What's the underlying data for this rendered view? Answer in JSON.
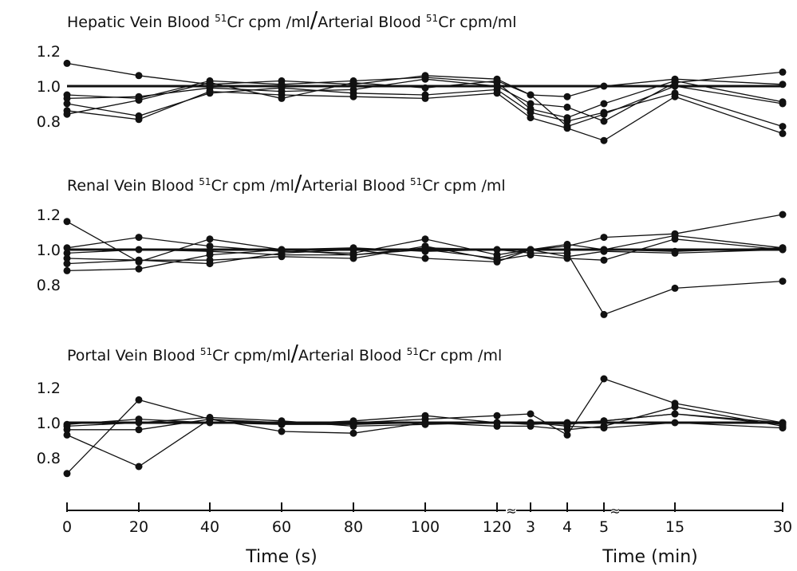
{
  "chart_data": {
    "type": "line",
    "x_categories": [
      "0",
      "20",
      "40",
      "60",
      "80",
      "100",
      "120",
      "3",
      "4",
      "5",
      "15",
      "30"
    ],
    "xlabel_seconds": "Time (s)",
    "xlabel_minutes": "Time (min)",
    "axis_break_mark": "≈",
    "reference_value": 1.0,
    "panels": [
      {
        "title_parts": [
          "Hepatic Vein Blood ",
          "51",
          "Cr cpm /ml",
          "/",
          "Arterial Blood ",
          "51",
          "Cr cpm/ml"
        ],
        "yticks": [
          "1.2",
          "1.0",
          "0.8"
        ],
        "ylim": [
          0.7,
          1.25
        ],
        "series": [
          {
            "values": [
              1.13,
              1.06,
              1.01,
              1.03,
              1.01,
              1.06,
              1.04,
              0.95,
              0.94,
              1.0,
              1.04,
              1.01
            ]
          },
          {
            "values": [
              0.95,
              0.93,
              1.03,
              1.01,
              1.03,
              1.05,
              1.02,
              0.87,
              0.82,
              0.9,
              1.03,
              0.91
            ]
          },
          {
            "values": [
              0.93,
              0.94,
              0.99,
              0.97,
              0.98,
              1.04,
              1.0,
              0.9,
              0.88,
              0.8,
              1.02,
              1.08
            ]
          },
          {
            "values": [
              0.9,
              0.83,
              0.96,
              0.99,
              0.96,
              0.95,
              0.98,
              0.85,
              0.8,
              0.85,
              0.96,
              0.77
            ]
          },
          {
            "values": [
              0.86,
              0.81,
              0.97,
              0.95,
              0.94,
              0.93,
              0.96,
              0.82,
              0.76,
              0.69,
              0.94,
              0.73
            ]
          },
          {
            "values": [
              0.84,
              0.92,
              1.02,
              0.93,
              1.02,
              0.99,
              1.03,
              0.95,
              0.77,
              0.84,
              1.0,
              0.9
            ]
          }
        ]
      },
      {
        "title_parts": [
          "Renal Vein Blood ",
          "51",
          "Cr cpm /ml",
          "/",
          "Arterial Blood ",
          "51",
          "Cr cpm /ml"
        ],
        "yticks": [
          "1.2",
          "1.0",
          "0.8"
        ],
        "ylim": [
          0.6,
          1.25
        ],
        "series": [
          {
            "values": [
              1.16,
              0.93,
              1.06,
              1.0,
              1.01,
              0.99,
              1.0,
              1.0,
              1.02,
              1.07,
              1.09,
              1.2
            ]
          },
          {
            "values": [
              1.01,
              1.07,
              1.02,
              0.99,
              0.98,
              1.06,
              0.97,
              1.0,
              1.0,
              1.0,
              0.99,
              1.01
            ]
          },
          {
            "values": [
              0.98,
              1.0,
              0.99,
              0.97,
              0.97,
              1.01,
              1.0,
              0.98,
              0.98,
              0.63,
              0.78,
              0.82
            ]
          },
          {
            "values": [
              0.95,
              0.94,
              0.94,
              0.96,
              0.95,
              1.02,
              0.94,
              0.97,
              0.95,
              0.94,
              1.06,
              1.0
            ]
          },
          {
            "values": [
              0.92,
              0.94,
              0.92,
              0.98,
              1.0,
              0.95,
              0.93,
              1.0,
              1.03,
              1.0,
              1.08,
              1.01
            ]
          },
          {
            "values": [
              0.88,
              0.89,
              0.97,
              1.0,
              0.97,
              1.0,
              0.95,
              1.0,
              0.96,
              0.99,
              0.98,
              1.0
            ]
          }
        ]
      },
      {
        "title_parts": [
          "Portal Vein Blood ",
          "51",
          "Cr cpm/ml",
          "/",
          "Arterial Blood ",
          "51",
          "Cr cpm /ml"
        ],
        "yticks": [
          "1.2",
          "1.0",
          "0.8"
        ],
        "ylim": [
          0.68,
          1.25
        ],
        "series": [
          {
            "values": [
              0.71,
              1.13,
              1.02,
              1.0,
              1.0,
              1.02,
              1.04,
              1.05,
              0.93,
              1.25,
              1.11,
              1.0
            ]
          },
          {
            "values": [
              0.93,
              0.75,
              1.02,
              0.95,
              0.94,
              1.0,
              0.98,
              0.98,
              0.96,
              0.98,
              1.09,
              0.98
            ]
          },
          {
            "values": [
              0.96,
              0.96,
              1.02,
              0.99,
              0.99,
              1.0,
              1.0,
              0.99,
              1.0,
              1.01,
              1.05,
              1.0
            ]
          },
          {
            "values": [
              0.99,
              1.02,
              1.0,
              0.99,
              1.01,
              1.04,
              1.0,
              1.0,
              0.98,
              0.97,
              1.0,
              0.97
            ]
          },
          {
            "values": [
              0.98,
              1.0,
              1.03,
              1.01,
              0.98,
              0.99,
              1.0,
              1.0,
              0.99,
              1.01,
              1.05,
              0.99
            ]
          }
        ]
      }
    ]
  }
}
